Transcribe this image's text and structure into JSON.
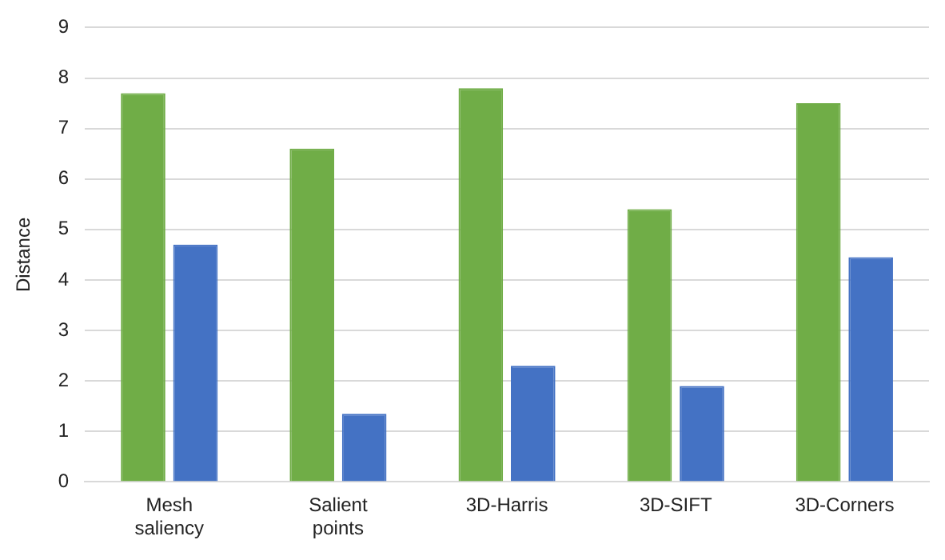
{
  "chart_data": {
    "type": "bar",
    "ylabel": "Distance",
    "categories": [
      "Mesh saliency",
      "Salient points",
      "3D-Harris",
      "3D-SIFT",
      "3D-Corners"
    ],
    "series": [
      {
        "color": "#70ad47",
        "values": [
          7.7,
          6.6,
          7.8,
          5.4,
          7.5
        ]
      },
      {
        "color": "#4472c4",
        "values": [
          4.7,
          1.35,
          2.3,
          1.9,
          4.45
        ]
      }
    ],
    "ylim": [
      0,
      9
    ],
    "yticks": [
      0,
      1,
      2,
      3,
      4,
      5,
      6,
      7,
      8,
      9
    ],
    "grid": "y",
    "legend": false
  }
}
